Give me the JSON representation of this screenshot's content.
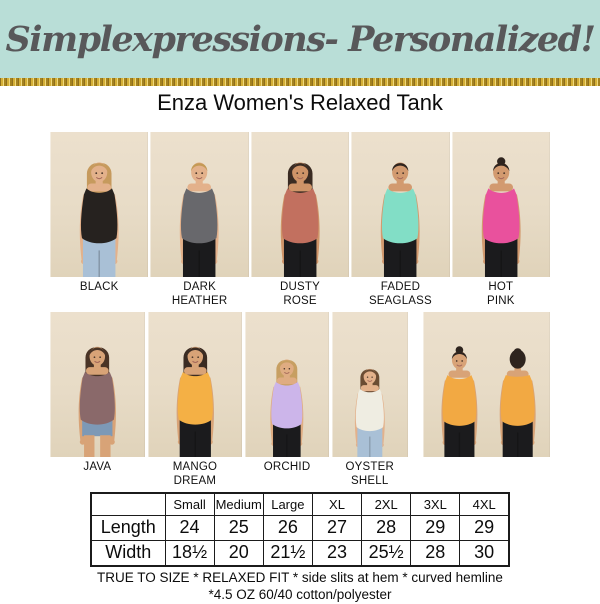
{
  "palette": {
    "banner_bg": "#b9ded7",
    "brand_text": "#58585a",
    "glitter_gold": "#d4af37",
    "photo_bg": "#e7dbc6",
    "table_border": "#1b1b1b"
  },
  "header": {
    "brand": "Simplexpressions- Personalized!"
  },
  "title": "Enza Women's Relaxed Tank",
  "rows": [
    {
      "photos": [
        {
          "label": "BLACK",
          "color": "#26221f",
          "hair": "#c69a5d",
          "hairstyle": "long",
          "skin": "#e3b18b",
          "bottom": "#a9c0d6",
          "bottom_style": "jeans",
          "view": "front"
        },
        {
          "label": "DARK\nHEATHER",
          "color": "#68686c",
          "hair": "#c49a55",
          "hairstyle": "tied",
          "skin": "#e3b18b",
          "bottom": "#1b1b1d",
          "bottom_style": "pants",
          "view": "front"
        },
        {
          "label": "DUSTY\nROSE",
          "color": "#c2705f",
          "hair": "#3a2b22",
          "hairstyle": "long",
          "skin": "#cf9468",
          "bottom": "#1b1b1d",
          "bottom_style": "pants",
          "view": "front"
        },
        {
          "label": "FADED\nSEAGLASS",
          "color": "#82dec6",
          "hair": "#2e241e",
          "hairstyle": "tied",
          "skin": "#d29a6f",
          "bottom": "#1b1b1d",
          "bottom_style": "pants",
          "view": "front"
        },
        {
          "label": "HOT\nPINK",
          "color": "#e9519d",
          "hair": "#2e241e",
          "hairstyle": "bun",
          "skin": "#d29a6f",
          "bottom": "#1b1b1d",
          "bottom_style": "pants",
          "view": "front"
        }
      ]
    },
    {
      "photos": [
        {
          "label": "JAVA",
          "color": "#8a696a",
          "hair": "#4a3426",
          "hairstyle": "long",
          "skin": "#d8a377",
          "bottom": "#7d99b6",
          "bottom_style": "shorts",
          "view": "front"
        },
        {
          "label": "MANGO\nDREAM",
          "color": "#f4b045",
          "hair": "#3a2b22",
          "hairstyle": "long",
          "skin": "#d8a377",
          "bottom": "#1b1b1d",
          "bottom_style": "pants",
          "view": "front"
        },
        {
          "label": "ORCHID",
          "color": "#ccb5ea",
          "hair": "#c79f62",
          "hairstyle": "long",
          "skin": "#dfac82",
          "bottom": "#1b1b1d",
          "bottom_style": "pants",
          "view": "front"
        },
        {
          "label": "OYSTER\nSHELL",
          "color": "#efede2",
          "hair": "#6b4c33",
          "hairstyle": "long",
          "skin": "#e3b18b",
          "bottom": "#a9c0d6",
          "bottom_style": "jeans",
          "view": "front"
        },
        {
          "label": "",
          "color": "#f2a943",
          "hair": "#2e241e",
          "hairstyle": "bun",
          "skin": "#d8a377",
          "bottom": "#1b1b1d",
          "bottom_style": "pants",
          "view": "side-back",
          "wide": true
        }
      ]
    }
  ],
  "size_table": {
    "columns": [
      "",
      "Small",
      "Medium",
      "Large",
      "XL",
      "2XL",
      "3XL",
      "4XL"
    ],
    "rows": [
      {
        "label": "Length",
        "values": [
          "24",
          "25",
          "26",
          "27",
          "28",
          "29",
          "29"
        ]
      },
      {
        "label": "Width",
        "values": [
          "18½",
          "20",
          "21½",
          "23",
          "25½",
          "28",
          "30"
        ]
      }
    ]
  },
  "footer": {
    "line1": "TRUE TO SIZE * RELAXED FIT * side slits at hem * curved hemline",
    "line2": "*4.5 OZ 60/40 cotton/polyester"
  }
}
